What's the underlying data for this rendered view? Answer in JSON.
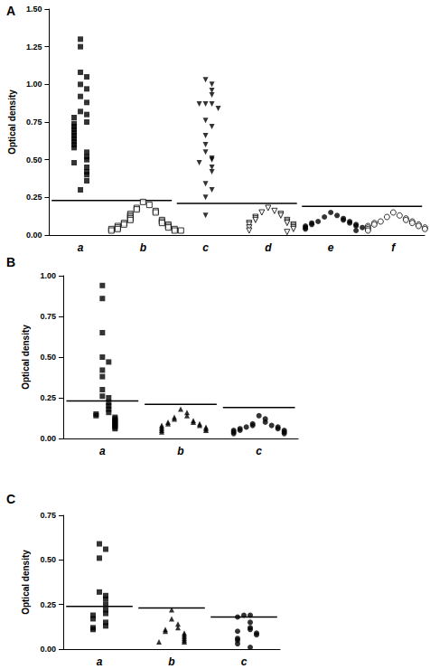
{
  "chart_data": [
    {
      "type": "scatter",
      "title": "A",
      "y_label": "Optical density",
      "grid": false,
      "categories": [
        "a",
        "b",
        "c",
        "d",
        "e",
        "f"
      ],
      "ylim": [
        0,
        1.5
      ],
      "yticks": [
        {
          "value": 0,
          "label": "0.00"
        },
        {
          "value": 0.25,
          "label": "0.25"
        },
        {
          "value": 0.5,
          "label": "0.50"
        },
        {
          "value": 0.75,
          "label": "0.75"
        },
        {
          "value": 1,
          "label": "1.00"
        },
        {
          "value": 1.25,
          "label": "1.25"
        },
        {
          "value": 1.5,
          "label": "1.50"
        }
      ],
      "groups": [
        {
          "category": "a",
          "marker": "square",
          "color": "#000000",
          "values": [
            1.3,
            1.25,
            1.08,
            1.05,
            1.0,
            0.97,
            0.92,
            0.88,
            0.82,
            0.8,
            0.78,
            0.75,
            0.74,
            0.72,
            0.7,
            0.68,
            0.66,
            0.64,
            0.62,
            0.6,
            0.58,
            0.55,
            0.52,
            0.5,
            0.48,
            0.45,
            0.42,
            0.4,
            0.36,
            0.3
          ]
        },
        {
          "category": "b",
          "marker": "open-square",
          "color": "#000000",
          "values": [
            0.22,
            0.2,
            0.18,
            0.17,
            0.16,
            0.15,
            0.14,
            0.13,
            0.12,
            0.11,
            0.1,
            0.1,
            0.09,
            0.08,
            0.08,
            0.07,
            0.07,
            0.06,
            0.06,
            0.05,
            0.05,
            0.04,
            0.04,
            0.04,
            0.03,
            0.03,
            0.03
          ]
        },
        {
          "category": "c",
          "marker": "triangle-down",
          "color": "#000000",
          "values": [
            1.03,
            1.0,
            0.96,
            0.93,
            0.87,
            0.87,
            0.87,
            0.84,
            0.76,
            0.72,
            0.66,
            0.6,
            0.55,
            0.51,
            0.5,
            0.48,
            0.45,
            0.42,
            0.34,
            0.3,
            0.25,
            0.13
          ]
        },
        {
          "category": "d",
          "marker": "open-triangle-down",
          "color": "#000000",
          "values": [
            0.18,
            0.16,
            0.15,
            0.14,
            0.13,
            0.12,
            0.11,
            0.1,
            0.1,
            0.09,
            0.08,
            0.08,
            0.07,
            0.07,
            0.06,
            0.05,
            0.05,
            0.04,
            0.03,
            0.02
          ]
        },
        {
          "category": "e",
          "marker": "circle",
          "color": "#000000",
          "values": [
            0.15,
            0.13,
            0.12,
            0.11,
            0.1,
            0.09,
            0.09,
            0.08,
            0.08,
            0.07,
            0.07,
            0.06,
            0.06,
            0.05,
            0.05,
            0.04,
            0.03
          ]
        },
        {
          "category": "f",
          "marker": "open-circle",
          "color": "#000000",
          "values": [
            0.15,
            0.13,
            0.12,
            0.11,
            0.1,
            0.09,
            0.09,
            0.08,
            0.08,
            0.07,
            0.07,
            0.06,
            0.06,
            0.05,
            0.05,
            0.04,
            0.04,
            0.03
          ]
        }
      ],
      "cutoffs": [
        {
          "value": 0.23,
          "categories": [
            "a",
            "b"
          ]
        },
        {
          "value": 0.21,
          "categories": [
            "c",
            "d"
          ]
        },
        {
          "value": 0.19,
          "categories": [
            "e",
            "f"
          ]
        }
      ]
    },
    {
      "type": "scatter",
      "title": "B",
      "y_label": "Optical density",
      "grid": false,
      "categories": [
        "a",
        "b",
        "c"
      ],
      "ylim": [
        0,
        1
      ],
      "yticks": [
        {
          "value": 0,
          "label": "0.00"
        },
        {
          "value": 0.25,
          "label": "0.25"
        },
        {
          "value": 0.5,
          "label": "0.50"
        },
        {
          "value": 0.75,
          "label": "0.75"
        },
        {
          "value": 1,
          "label": "1.00"
        }
      ],
      "groups": [
        {
          "category": "a",
          "marker": "square",
          "color": "#000000",
          "values": [
            0.94,
            0.86,
            0.65,
            0.5,
            0.47,
            0.42,
            0.38,
            0.3,
            0.26,
            0.25,
            0.22,
            0.2,
            0.18,
            0.16,
            0.15,
            0.14,
            0.13,
            0.12,
            0.11,
            0.1,
            0.09,
            0.08,
            0.07,
            0.06
          ]
        },
        {
          "category": "b",
          "marker": "triangle",
          "color": "#000000",
          "values": [
            0.18,
            0.16,
            0.14,
            0.13,
            0.12,
            0.11,
            0.1,
            0.1,
            0.09,
            0.09,
            0.08,
            0.08,
            0.07,
            0.07,
            0.06,
            0.06,
            0.05,
            0.05,
            0.04
          ]
        },
        {
          "category": "c",
          "marker": "circle",
          "color": "#000000",
          "values": [
            0.14,
            0.12,
            0.1,
            0.09,
            0.08,
            0.08,
            0.07,
            0.07,
            0.06,
            0.06,
            0.05,
            0.05,
            0.05,
            0.04,
            0.04,
            0.03,
            0.03
          ]
        }
      ],
      "cutoffs": [
        {
          "value": 0.23,
          "categories": [
            "a"
          ]
        },
        {
          "value": 0.21,
          "categories": [
            "b"
          ]
        },
        {
          "value": 0.19,
          "categories": [
            "c"
          ]
        }
      ]
    },
    {
      "type": "scatter",
      "title": "C",
      "y_label": "Optical density",
      "grid": false,
      "categories": [
        "a",
        "b",
        "c"
      ],
      "ylim": [
        0,
        0.75
      ],
      "yticks": [
        {
          "value": 0,
          "label": "0.00"
        },
        {
          "value": 0.25,
          "label": "0.25"
        },
        {
          "value": 0.5,
          "label": "0.50"
        },
        {
          "value": 0.75,
          "label": "0.75"
        }
      ],
      "groups": [
        {
          "category": "a",
          "marker": "square",
          "color": "#000000",
          "values": [
            0.59,
            0.56,
            0.51,
            0.32,
            0.3,
            0.28,
            0.25,
            0.22,
            0.2,
            0.19,
            0.17,
            0.15,
            0.13,
            0.12,
            0.11
          ]
        },
        {
          "category": "b",
          "marker": "triangle",
          "color": "#000000",
          "values": [
            0.22,
            0.17,
            0.14,
            0.12,
            0.11,
            0.1,
            0.09,
            0.08,
            0.07,
            0.06,
            0.05,
            0.04,
            0.04
          ]
        },
        {
          "category": "c",
          "marker": "circle",
          "color": "#000000",
          "values": [
            0.19,
            0.19,
            0.18,
            0.15,
            0.12,
            0.11,
            0.1,
            0.09,
            0.08,
            0.06,
            0.05,
            0.03,
            0.01
          ]
        }
      ],
      "cutoffs": [
        {
          "value": 0.24,
          "categories": [
            "a"
          ]
        },
        {
          "value": 0.23,
          "categories": [
            "b"
          ]
        },
        {
          "value": 0.18,
          "categories": [
            "c"
          ]
        }
      ]
    }
  ]
}
